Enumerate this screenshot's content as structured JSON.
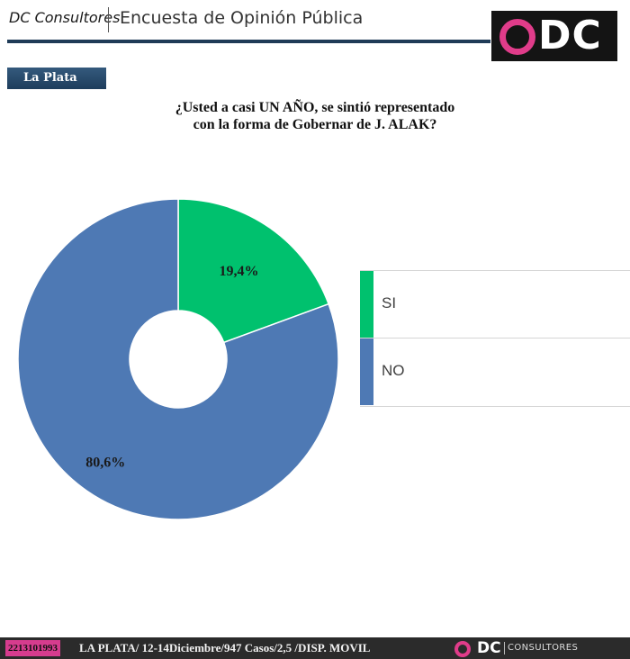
{
  "header": {
    "brand": "DC Consultores",
    "title": "Encuesta de Opinión Pública",
    "logo_text": "DC",
    "colors": {
      "rule": "#1f3b57",
      "logo_bg": "#141414",
      "accent": "#e03c8a"
    }
  },
  "region_label": "La Plata",
  "question": {
    "line1": "¿Usted a casi UN AÑO, se sintió representado",
    "line2": "con la forma de Gobernar de J. ALAK?"
  },
  "chart_data": {
    "type": "pie",
    "variant": "donut",
    "title": "",
    "series": [
      {
        "name": "SI",
        "value": 19.4,
        "label": "19,4%",
        "color": "#00c16e"
      },
      {
        "name": "NO",
        "value": 80.6,
        "label": "80,6%",
        "color": "#4e79b4"
      }
    ],
    "legend": "right",
    "start_angle": "12 o'clock",
    "direction": "clockwise"
  },
  "footer": {
    "phone": "2213101993",
    "info": "LA PLATA/ 12-14Diciembre/947 Casos/2,5 /DISP. MOVIL",
    "logo_text": "DC",
    "logo_word": "CONSULTORES"
  }
}
